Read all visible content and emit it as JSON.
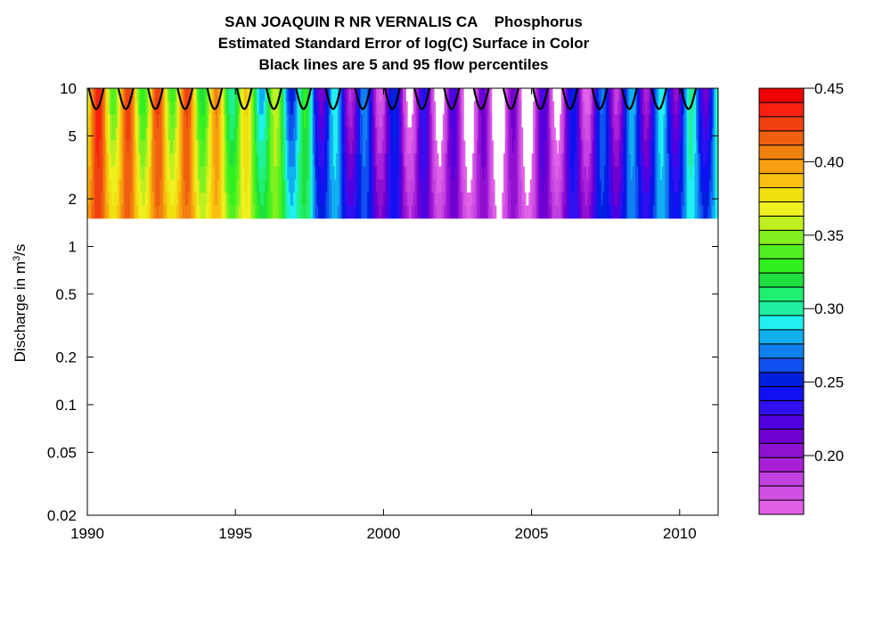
{
  "chart_data": {
    "type": "heatmap",
    "title_lines": [
      "SAN JOAQUIN R NR VERNALIS CA    Phosphorus",
      "Estimated Standard Error of log(C) Surface in Color",
      "Black lines are 5 and 95 flow percentiles"
    ],
    "ylabel": "Discharge in m",
    "ylabel_sup": "3",
    "ylabel_suffix": "/s",
    "y_scale": "log",
    "xlim": [
      1990,
      2011.3
    ],
    "ylim": [
      0.02,
      10
    ],
    "x_ticks": [
      1990,
      1995,
      2000,
      2005,
      2010
    ],
    "x_tick_labels": [
      "1990",
      "1995",
      "2000",
      "2005",
      "2010"
    ],
    "y_ticks": [
      0.02,
      0.05,
      0.1,
      0.2,
      0.5,
      1,
      2,
      5,
      10
    ],
    "y_tick_labels": [
      "0.02",
      "0.05",
      "0.1",
      "0.2",
      "0.5",
      "1",
      "2",
      "5",
      "10"
    ],
    "surface_y_range": [
      1.5,
      10
    ],
    "flow_percentile_label": "Black lines are 5 and 95 flow percentiles",
    "percentile_line_min": 7.4,
    "colorbar": {
      "range": [
        0.16,
        0.45
      ],
      "ticks": [
        0.2,
        0.25,
        0.3,
        0.35,
        0.4,
        0.45
      ],
      "tick_labels": [
        "0.20",
        "0.25",
        "0.30",
        "0.35",
        "0.40",
        "0.45"
      ],
      "colors": [
        "#e060e8",
        "#d050e4",
        "#c040e0",
        "#a820d8",
        "#9010d0",
        "#7000d0",
        "#5000e0",
        "#3010f0",
        "#1010f0",
        "#0020e0",
        "#1050f0",
        "#1080f0",
        "#10b0f0",
        "#20f0f0",
        "#20f0a0",
        "#20f070",
        "#20e040",
        "#30f020",
        "#50f020",
        "#80f020",
        "#c0f020",
        "#f0f020",
        "#f0e010",
        "#f8c010",
        "#f8a010",
        "#f08010",
        "#f06010",
        "#f04010",
        "#f82010",
        "#f00000"
      ]
    },
    "yearly_values": [
      {
        "year": 1990,
        "value": 0.4
      },
      {
        "year": 1991,
        "value": 0.39
      },
      {
        "year": 1992,
        "value": 0.38
      },
      {
        "year": 1993,
        "value": 0.39
      },
      {
        "year": 1994,
        "value": 0.37
      },
      {
        "year": 1995,
        "value": 0.35
      },
      {
        "year": 1996,
        "value": 0.33
      },
      {
        "year": 1997,
        "value": 0.3
      },
      {
        "year": 1998,
        "value": 0.26
      },
      {
        "year": 1999,
        "value": 0.24
      },
      {
        "year": 2000,
        "value": 0.22
      },
      {
        "year": 2001,
        "value": 0.2
      },
      {
        "year": 2002,
        "value": 0.19
      },
      {
        "year": 2003,
        "value": 0.18
      },
      {
        "year": 2004,
        "value": 0.17
      },
      {
        "year": 2005,
        "value": 0.18
      },
      {
        "year": 2006,
        "value": 0.2
      },
      {
        "year": 2007,
        "value": 0.22
      },
      {
        "year": 2008,
        "value": 0.24
      },
      {
        "year": 2009,
        "value": 0.25
      },
      {
        "year": 2010,
        "value": 0.26
      },
      {
        "year": 2011,
        "value": 0.27
      }
    ]
  }
}
